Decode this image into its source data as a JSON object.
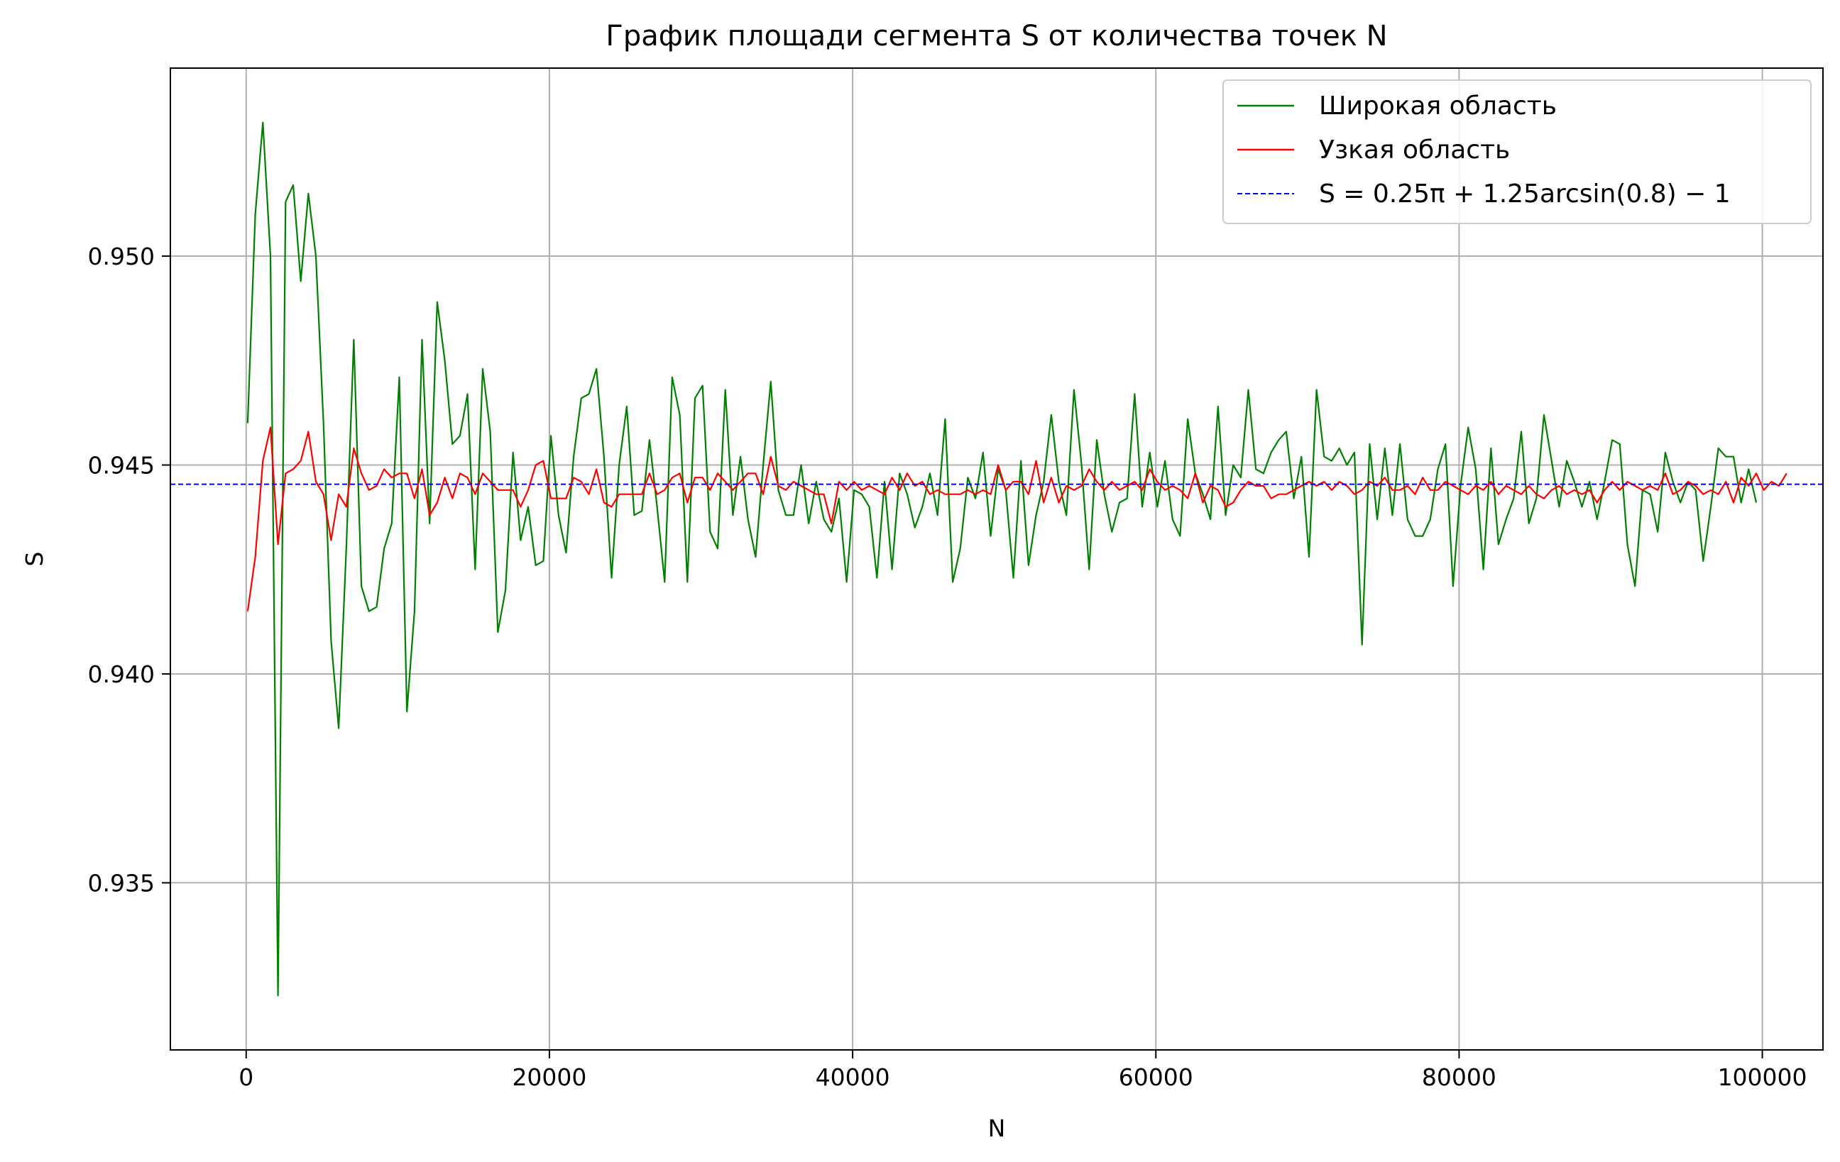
{
  "chart_data": {
    "type": "line",
    "title": "График площади сегмента S от количества точек N",
    "xlabel": "N",
    "ylabel": "S",
    "xlim": [
      -5000,
      104000
    ],
    "ylim": [
      0.931,
      0.9545
    ],
    "xticks": [
      0,
      20000,
      40000,
      60000,
      80000,
      100000
    ],
    "yticks": [
      0.935,
      0.94,
      0.945,
      0.95
    ],
    "xtick_labels": [
      "0",
      "20000",
      "40000",
      "60000",
      "80000",
      "100000"
    ],
    "ytick_labels": [
      "0.935",
      "0.940",
      "0.945",
      "0.950"
    ],
    "grid": true,
    "legend_position": "top-right",
    "x_start": 100,
    "x_step": 500,
    "series": [
      {
        "name": "Широкая область",
        "color": "#008000",
        "style": "solid",
        "values": [
          0.946,
          0.951,
          0.9532,
          0.95,
          0.9323,
          0.9513,
          0.9517,
          0.9494,
          0.9515,
          0.95,
          0.946,
          0.9408,
          0.9387,
          0.943,
          0.948,
          0.9421,
          0.9415,
          0.9416,
          0.943,
          0.9436,
          0.9471,
          0.9391,
          0.9415,
          0.948,
          0.9436,
          0.9489,
          0.9475,
          0.9455,
          0.9457,
          0.9467,
          0.9425,
          0.9473,
          0.9458,
          0.941,
          0.942,
          0.9453,
          0.9432,
          0.944,
          0.9426,
          0.9427,
          0.9457,
          0.9438,
          0.9429,
          0.9452,
          0.9466,
          0.9467,
          0.9473,
          0.9452,
          0.9423,
          0.945,
          0.9464,
          0.9438,
          0.9439,
          0.9456,
          0.944,
          0.9422,
          0.9471,
          0.9462,
          0.9422,
          0.9466,
          0.9469,
          0.9434,
          0.943,
          0.9468,
          0.9438,
          0.9452,
          0.9437,
          0.9428,
          0.945,
          0.947,
          0.9444,
          0.9438,
          0.9438,
          0.945,
          0.9436,
          0.9446,
          0.9437,
          0.9434,
          0.9442,
          0.9422,
          0.9444,
          0.9443,
          0.944,
          0.9423,
          0.9446,
          0.9425,
          0.9448,
          0.9443,
          0.9435,
          0.944,
          0.9448,
          0.9438,
          0.9461,
          0.9422,
          0.943,
          0.9447,
          0.9442,
          0.9453,
          0.9433,
          0.9449,
          0.9444,
          0.9423,
          0.9451,
          0.9426,
          0.9438,
          0.9446,
          0.9462,
          0.9446,
          0.9438,
          0.9468,
          0.945,
          0.9425,
          0.9456,
          0.9443,
          0.9434,
          0.9441,
          0.9442,
          0.9467,
          0.944,
          0.9453,
          0.944,
          0.9451,
          0.9437,
          0.9433,
          0.9461,
          0.9448,
          0.9443,
          0.9437,
          0.9464,
          0.9438,
          0.945,
          0.9447,
          0.9468,
          0.9449,
          0.9448,
          0.9453,
          0.9456,
          0.9458,
          0.9442,
          0.9452,
          0.9428,
          0.9468,
          0.9452,
          0.9451,
          0.9454,
          0.945,
          0.9453,
          0.9407,
          0.9455,
          0.9437,
          0.9454,
          0.9438,
          0.9455,
          0.9437,
          0.9433,
          0.9433,
          0.9437,
          0.9449,
          0.9455,
          0.9421,
          0.9445,
          0.9459,
          0.9449,
          0.9425,
          0.9454,
          0.9431,
          0.9437,
          0.9442,
          0.9458,
          0.9436,
          0.9442,
          0.9462,
          0.9451,
          0.944,
          0.9451,
          0.9446,
          0.944,
          0.9446,
          0.9437,
          0.9446,
          0.9456,
          0.9455,
          0.9431,
          0.9421,
          0.9444,
          0.9443,
          0.9434,
          0.9453,
          0.9446,
          0.9441,
          0.9446,
          0.9444,
          0.9427,
          0.944,
          0.9454,
          0.9452,
          0.9452,
          0.9441,
          0.9449,
          0.9441
        ]
      },
      {
        "name": "Узкая область",
        "color": "#ff0000",
        "style": "solid",
        "values": [
          0.9415,
          0.9428,
          0.9451,
          0.9459,
          0.9431,
          0.9448,
          0.9449,
          0.9451,
          0.9458,
          0.9446,
          0.9443,
          0.9432,
          0.9443,
          0.944,
          0.9454,
          0.9448,
          0.9444,
          0.9445,
          0.9449,
          0.9447,
          0.9448,
          0.9448,
          0.9442,
          0.9449,
          0.9438,
          0.9441,
          0.9447,
          0.9442,
          0.9448,
          0.9447,
          0.9443,
          0.9448,
          0.9446,
          0.9444,
          0.9444,
          0.9444,
          0.944,
          0.9444,
          0.945,
          0.9451,
          0.9442,
          0.9442,
          0.9442,
          0.9447,
          0.9446,
          0.9443,
          0.9449,
          0.9441,
          0.944,
          0.9443,
          0.9443,
          0.9443,
          0.9443,
          0.9448,
          0.9443,
          0.9444,
          0.9447,
          0.9448,
          0.9441,
          0.9447,
          0.9447,
          0.9444,
          0.9448,
          0.9446,
          0.9444,
          0.9446,
          0.9448,
          0.9448,
          0.9443,
          0.9452,
          0.9445,
          0.9444,
          0.9446,
          0.9445,
          0.9444,
          0.9443,
          0.9443,
          0.9436,
          0.9446,
          0.9444,
          0.9446,
          0.9444,
          0.9445,
          0.9444,
          0.9443,
          0.9447,
          0.9444,
          0.9448,
          0.9445,
          0.9446,
          0.9443,
          0.9444,
          0.9443,
          0.9443,
          0.9443,
          0.9444,
          0.9443,
          0.9444,
          0.9443,
          0.945,
          0.9444,
          0.9446,
          0.9446,
          0.9443,
          0.9451,
          0.9441,
          0.9447,
          0.9441,
          0.9445,
          0.9444,
          0.9445,
          0.9449,
          0.9446,
          0.9444,
          0.9446,
          0.9444,
          0.9445,
          0.9446,
          0.9444,
          0.9449,
          0.9446,
          0.9444,
          0.9445,
          0.9444,
          0.9442,
          0.9448,
          0.9441,
          0.9445,
          0.9444,
          0.944,
          0.9441,
          0.9444,
          0.9446,
          0.9445,
          0.9445,
          0.9442,
          0.9443,
          0.9443,
          0.9444,
          0.9445,
          0.9446,
          0.9445,
          0.9446,
          0.9444,
          0.9446,
          0.9445,
          0.9443,
          0.9444,
          0.9446,
          0.9445,
          0.9447,
          0.9444,
          0.9444,
          0.9445,
          0.9443,
          0.9447,
          0.9444,
          0.9444,
          0.9446,
          0.9445,
          0.9444,
          0.9443,
          0.9445,
          0.9444,
          0.9446,
          0.9443,
          0.9445,
          0.9444,
          0.9443,
          0.9445,
          0.9443,
          0.9442,
          0.9444,
          0.9445,
          0.9443,
          0.9444,
          0.9443,
          0.9444,
          0.9441,
          0.9444,
          0.9446,
          0.9444,
          0.9446,
          0.9445,
          0.9444,
          0.9445,
          0.9444,
          0.9448,
          0.9443,
          0.9444,
          0.9446,
          0.9445,
          0.9443,
          0.9444,
          0.9443,
          0.9446,
          0.9441,
          0.9447,
          0.9445,
          0.9448,
          0.9444,
          0.9446,
          0.9445,
          0.9448
        ]
      },
      {
        "name": "S = 0.25π + 1.25arcsin(0.8) − 1",
        "color": "#0000ff",
        "style": "dashed",
        "constant": 0.94454
      }
    ]
  }
}
